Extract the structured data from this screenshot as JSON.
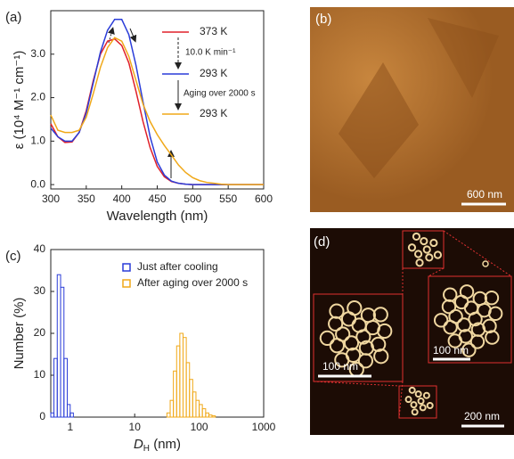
{
  "chart_data": [
    {
      "type": "line",
      "panel_label": "(a)",
      "xlabel": "Wavelength (nm)",
      "ylabel": "ε (10⁴ M⁻¹ cm⁻¹)",
      "x": [
        300,
        310,
        320,
        330,
        340,
        350,
        360,
        370,
        380,
        390,
        400,
        410,
        420,
        430,
        440,
        450,
        460,
        470,
        480,
        490,
        500,
        510,
        520,
        530,
        540,
        550,
        560,
        570,
        580,
        590,
        600
      ],
      "series": [
        {
          "name": "373 K",
          "color": "#e0202a",
          "values": [
            1.4,
            1.1,
            0.97,
            0.98,
            1.2,
            1.7,
            2.4,
            3.0,
            3.3,
            3.35,
            3.2,
            2.8,
            2.15,
            1.45,
            0.85,
            0.42,
            0.18,
            0.07,
            0.03,
            0.01,
            0,
            0,
            0,
            0,
            0,
            0,
            0,
            0,
            0,
            0,
            0
          ]
        },
        {
          "name": "293 K",
          "color": "#2a3cd8",
          "values": [
            1.3,
            1.1,
            1.0,
            1.0,
            1.2,
            1.65,
            2.35,
            3.05,
            3.55,
            3.8,
            3.8,
            3.45,
            2.75,
            1.9,
            1.1,
            0.52,
            0.22,
            0.08,
            0.03,
            0.01,
            0,
            0,
            0,
            0,
            0,
            0,
            0,
            0,
            0,
            0,
            0
          ]
        },
        {
          "name": "293 K",
          "color": "#f0a818",
          "values": [
            1.6,
            1.25,
            1.2,
            1.2,
            1.25,
            1.55,
            2.1,
            2.7,
            3.15,
            3.38,
            3.3,
            2.95,
            2.4,
            1.85,
            1.45,
            1.15,
            0.9,
            0.68,
            0.45,
            0.28,
            0.16,
            0.09,
            0.05,
            0.03,
            0.01,
            0,
            0,
            0,
            0,
            0,
            0
          ]
        }
      ],
      "annotations": [
        "10.0 K min⁻¹",
        "Aging over 2000 s"
      ],
      "xlim": [
        300,
        600
      ],
      "xticks": [
        300,
        350,
        400,
        450,
        500,
        550,
        600
      ],
      "ylim": [
        -0.1,
        4.0
      ],
      "yticks": [
        {
          "value": 0,
          "label": "0.0"
        },
        {
          "value": 1,
          "label": "1.0"
        },
        {
          "value": 2,
          "label": "2.0"
        },
        {
          "value": 3,
          "label": "3.0"
        }
      ]
    },
    {
      "type": "histogram",
      "panel_label": "(c)",
      "xlabel": "D",
      "xlabel_sub": "H",
      "xlabel_unit": " (nm)",
      "ylabel": "Number (%)",
      "log_x": true,
      "series": [
        {
          "name": "Just after cooling",
          "color": "#2a3cd8",
          "bins": [
            0.5,
            0.56,
            0.63,
            0.71,
            0.8,
            0.9,
            1.0,
            1.12
          ],
          "values": [
            1,
            14,
            34,
            31,
            14,
            3,
            1
          ]
        },
        {
          "name": "After aging over 2000 s",
          "color": "#f0a818",
          "bins": [
            31.6,
            35.5,
            39.8,
            44.7,
            50.1,
            56.2,
            63.1,
            70.8,
            79.4,
            89.1,
            100,
            112,
            126,
            141,
            158,
            178
          ],
          "values": [
            1,
            4,
            11,
            17,
            20,
            19,
            13,
            9,
            6,
            4,
            3,
            2,
            1,
            0.5,
            0.3
          ]
        }
      ],
      "xlim": [
        0.5,
        1000
      ],
      "xticks": [
        1,
        10,
        100,
        1000
      ],
      "ylim": [
        0,
        40
      ],
      "yticks": [
        0,
        10,
        20,
        30,
        40
      ]
    }
  ],
  "images": [
    {
      "label": "(b)",
      "scale_bar": "600 nm"
    },
    {
      "label": "(d)",
      "scale_bars": [
        "100 nm",
        "100 nm",
        "200 nm"
      ]
    }
  ]
}
